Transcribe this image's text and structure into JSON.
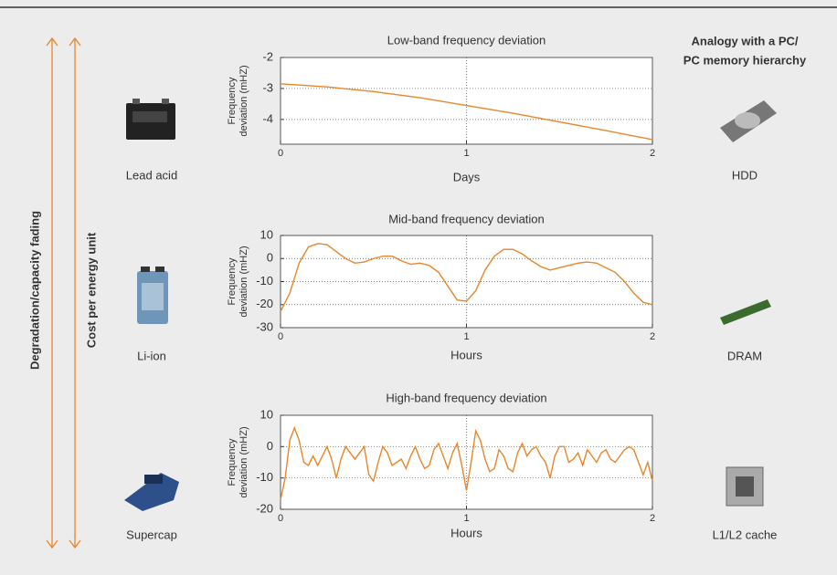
{
  "chart_data": [
    {
      "type": "line",
      "title": "Low-band frequency deviation",
      "xlabel": "Days",
      "ylabel": [
        "Frequency",
        "deviation (mHZ)"
      ],
      "x": [
        0,
        0.25,
        0.5,
        0.75,
        1,
        1.25,
        1.5,
        1.75,
        2
      ],
      "values": [
        -2.85,
        -2.95,
        -3.1,
        -3.3,
        -3.55,
        -3.8,
        -4.08,
        -4.36,
        -4.65
      ],
      "color": "#e8862a",
      "xlim": [
        0,
        2
      ],
      "xticks": [
        0,
        1,
        2
      ],
      "ylim": [
        -4.8,
        -2
      ],
      "yticks": [
        -4,
        -3,
        -2
      ],
      "grid": true
    },
    {
      "type": "line",
      "title": "Mid-band frequency deviation",
      "xlabel": "Hours",
      "ylabel": [
        "Frequency",
        "deviation (mHZ)"
      ],
      "x": [
        0,
        0.05,
        0.1,
        0.15,
        0.2,
        0.25,
        0.3,
        0.35,
        0.4,
        0.45,
        0.5,
        0.55,
        0.6,
        0.65,
        0.7,
        0.75,
        0.8,
        0.85,
        0.9,
        0.95,
        1,
        1.05,
        1.1,
        1.15,
        1.2,
        1.25,
        1.3,
        1.35,
        1.4,
        1.45,
        1.5,
        1.55,
        1.6,
        1.65,
        1.7,
        1.75,
        1.8,
        1.85,
        1.9,
        1.95,
        2
      ],
      "values": [
        -23,
        -15,
        -2,
        5,
        6.5,
        6,
        3,
        0,
        -2,
        -1.5,
        0,
        1,
        1,
        -1,
        -2.5,
        -2,
        -3,
        -6,
        -12,
        -18,
        -18.5,
        -14,
        -5,
        1,
        4,
        4,
        2,
        -1,
        -3.5,
        -5,
        -4,
        -3,
        -2,
        -1.5,
        -2,
        -4,
        -6,
        -10,
        -15,
        -19,
        -20
      ],
      "color": "#e8862a",
      "xlim": [
        0,
        2
      ],
      "xticks": [
        0,
        1,
        2
      ],
      "ylim": [
        -30,
        10
      ],
      "yticks": [
        -30,
        -20,
        -10,
        0,
        10
      ],
      "grid": true
    },
    {
      "type": "line",
      "title": "High-band frequency deviation",
      "xlabel": "Hours",
      "ylabel": [
        "Frequency",
        "deviation (mHZ)"
      ],
      "x": [
        0,
        0.025,
        0.05,
        0.075,
        0.1,
        0.125,
        0.15,
        0.175,
        0.2,
        0.225,
        0.25,
        0.275,
        0.3,
        0.325,
        0.35,
        0.375,
        0.4,
        0.425,
        0.45,
        0.475,
        0.5,
        0.525,
        0.55,
        0.575,
        0.6,
        0.625,
        0.65,
        0.675,
        0.7,
        0.725,
        0.75,
        0.775,
        0.8,
        0.825,
        0.85,
        0.875,
        0.9,
        0.925,
        0.95,
        0.975,
        1,
        1.025,
        1.05,
        1.075,
        1.1,
        1.125,
        1.15,
        1.175,
        1.2,
        1.225,
        1.25,
        1.275,
        1.3,
        1.325,
        1.35,
        1.375,
        1.4,
        1.425,
        1.45,
        1.475,
        1.5,
        1.525,
        1.55,
        1.575,
        1.6,
        1.625,
        1.65,
        1.675,
        1.7,
        1.725,
        1.75,
        1.775,
        1.8,
        1.825,
        1.85,
        1.875,
        1.9,
        1.925,
        1.95,
        1.975,
        2
      ],
      "values": [
        -17,
        -10,
        2,
        6,
        2,
        -5,
        -6,
        -3,
        -6,
        -3,
        0,
        -4,
        -10,
        -4,
        0,
        -2,
        -4,
        -2,
        0,
        -9,
        -11,
        -5,
        0,
        -2,
        -6,
        -5,
        -4,
        -7,
        -3,
        0,
        -4,
        -7,
        -6,
        -1,
        1,
        -3,
        -7,
        -2,
        1,
        -6,
        -14,
        -5,
        5,
        2,
        -4,
        -8,
        -7,
        -1,
        -3,
        -7,
        -8,
        -2,
        1,
        -3,
        -1,
        0,
        -3,
        -5,
        -10,
        -3,
        0,
        0,
        -5,
        -4,
        -2,
        -6,
        -1,
        -3,
        -5,
        -2,
        -1,
        -4,
        -5,
        -3,
        -1,
        0,
        -1,
        -5,
        -9,
        -5,
        -11
      ],
      "color": "#e8862a",
      "xlim": [
        0,
        2
      ],
      "xticks": [
        0,
        1,
        2
      ],
      "ylim": [
        -20,
        10
      ],
      "yticks": [
        -20,
        -10,
        0,
        10
      ],
      "grid": true
    }
  ],
  "left_axis": {
    "outer": "Degradation/capacity fading",
    "inner": "Cost per energy unit"
  },
  "storage": [
    "Lead acid",
    "Li-ion",
    "Supercap"
  ],
  "analogy": {
    "title": [
      "Analogy with a PC/",
      "PC memory hierarchy"
    ],
    "items": [
      "HDD",
      "DRAM",
      "L1/L2 cache"
    ]
  }
}
